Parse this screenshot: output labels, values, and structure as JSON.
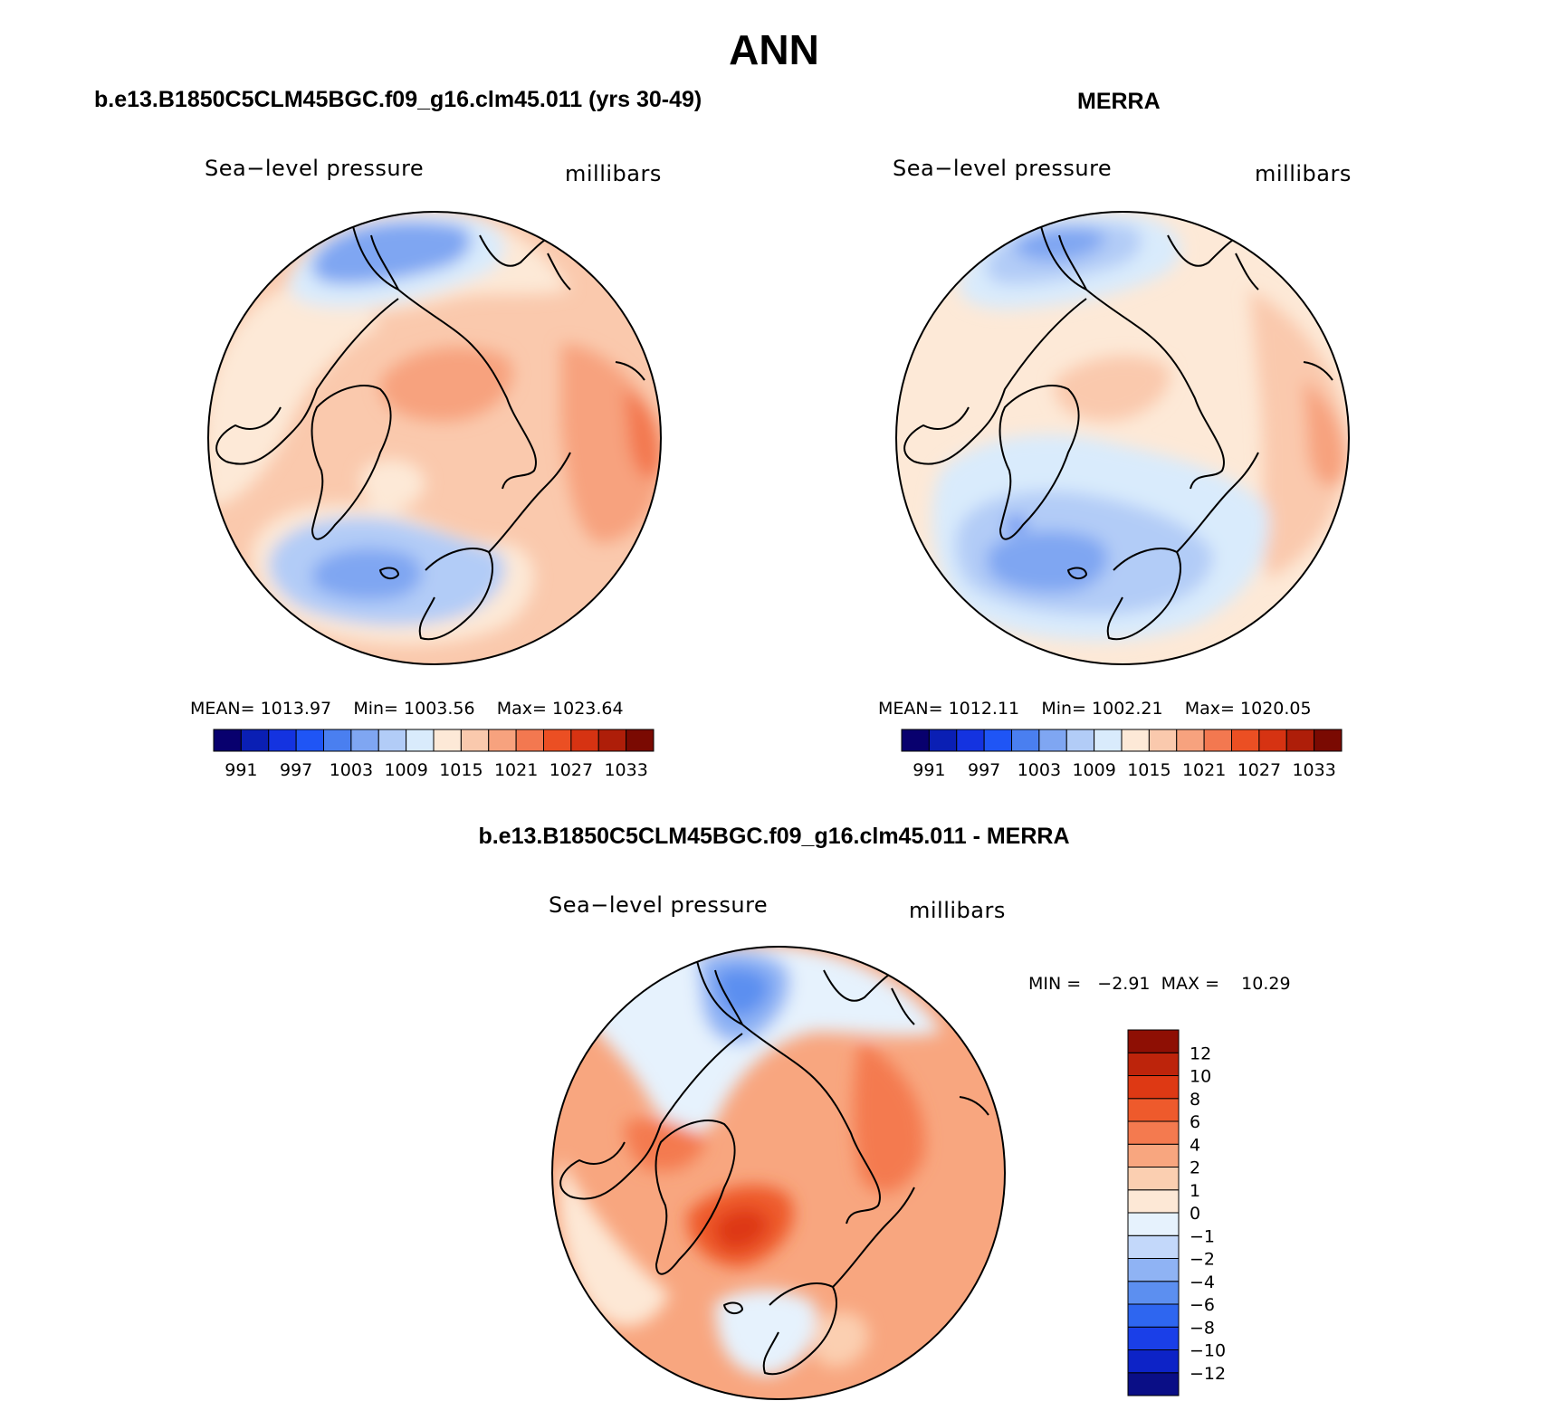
{
  "main_title": "ANN",
  "panels": [
    {
      "title": "b.e13.B1850C5CLM45BGC.f09_g16.clm45.011 (yrs 30-49)",
      "variable": "Sea−level pressure",
      "units": "millibars",
      "stats": {
        "mean_label": "MEAN=",
        "mean": "1013.97",
        "min_label": "Min=",
        "min": "1003.56",
        "max_label": "Max=",
        "max": "1023.64"
      }
    },
    {
      "title": "MERRA",
      "variable": "Sea−level pressure",
      "units": "millibars",
      "stats": {
        "mean_label": "MEAN=",
        "mean": "1012.11",
        "min_label": "Min=",
        "min": "1002.21",
        "max_label": "Max=",
        "max": "1020.05"
      }
    },
    {
      "title": "b.e13.B1850C5CLM45BGC.f09_g16.clm45.011 - MERRA",
      "variable": "Sea−level pressure",
      "units": "millibars",
      "stats": {
        "min_label": "MIN =",
        "min": "−2.91",
        "max_label": "MAX =",
        "max": "10.29"
      }
    }
  ],
  "colorbar_abs": {
    "colors": [
      "#08006e",
      "#0a1fb4",
      "#1433e0",
      "#1f55f5",
      "#4a7ff0",
      "#7fa6f2",
      "#b2ccf7",
      "#d9ebfc",
      "#fde9d7",
      "#fac9ad",
      "#f7a27e",
      "#f37850",
      "#eb4f23",
      "#d63312",
      "#ae1e09",
      "#7a0a02"
    ],
    "tick_labels": [
      "991",
      "997",
      "1003",
      "1009",
      "1015",
      "1021",
      "1027",
      "1033"
    ]
  },
  "colorbar_diff": {
    "colors": [
      "#0a0e86",
      "#0d23c7",
      "#1a3fe8",
      "#2e66f0",
      "#5c8ff0",
      "#8fb3f4",
      "#c3d8fa",
      "#e6f2fd",
      "#fde8d6",
      "#fbcfb1",
      "#f8a67f",
      "#f47a4f",
      "#ee5a2c",
      "#de3914",
      "#bd240b",
      "#8e0f04"
    ],
    "tick_labels": [
      "12",
      "10",
      "8",
      "6",
      "4",
      "2",
      "1",
      "0",
      "−1",
      "−2",
      "−4",
      "−6",
      "−8",
      "−10",
      "−12"
    ]
  },
  "chart_data": [
    {
      "type": "heatmap",
      "projection": "north-polar-stereographic",
      "title": "b.e13.B1850C5CLM45BGC.f09_g16.clm45.011 (yrs 30-49)",
      "variable": "Sea-level pressure",
      "units": "millibars",
      "levels": [
        991,
        994,
        997,
        1000,
        1003,
        1006,
        1009,
        1012,
        1015,
        1018,
        1021,
        1024,
        1027,
        1030,
        1033
      ],
      "mean": 1013.97,
      "min": 1003.56,
      "max": 1023.64
    },
    {
      "type": "heatmap",
      "projection": "north-polar-stereographic",
      "title": "MERRA",
      "variable": "Sea-level pressure",
      "units": "millibars",
      "levels": [
        991,
        994,
        997,
        1000,
        1003,
        1006,
        1009,
        1012,
        1015,
        1018,
        1021,
        1024,
        1027,
        1030,
        1033
      ],
      "mean": 1012.11,
      "min": 1002.21,
      "max": 1020.05
    },
    {
      "type": "heatmap",
      "projection": "north-polar-stereographic",
      "title": "b.e13.B1850C5CLM45BGC.f09_g16.clm45.011 - MERRA",
      "variable": "Sea-level pressure",
      "units": "millibars",
      "levels": [
        -12,
        -10,
        -8,
        -6,
        -4,
        -2,
        -1,
        0,
        1,
        2,
        4,
        6,
        8,
        10,
        12
      ],
      "min": -2.91,
      "max": 10.29
    }
  ]
}
